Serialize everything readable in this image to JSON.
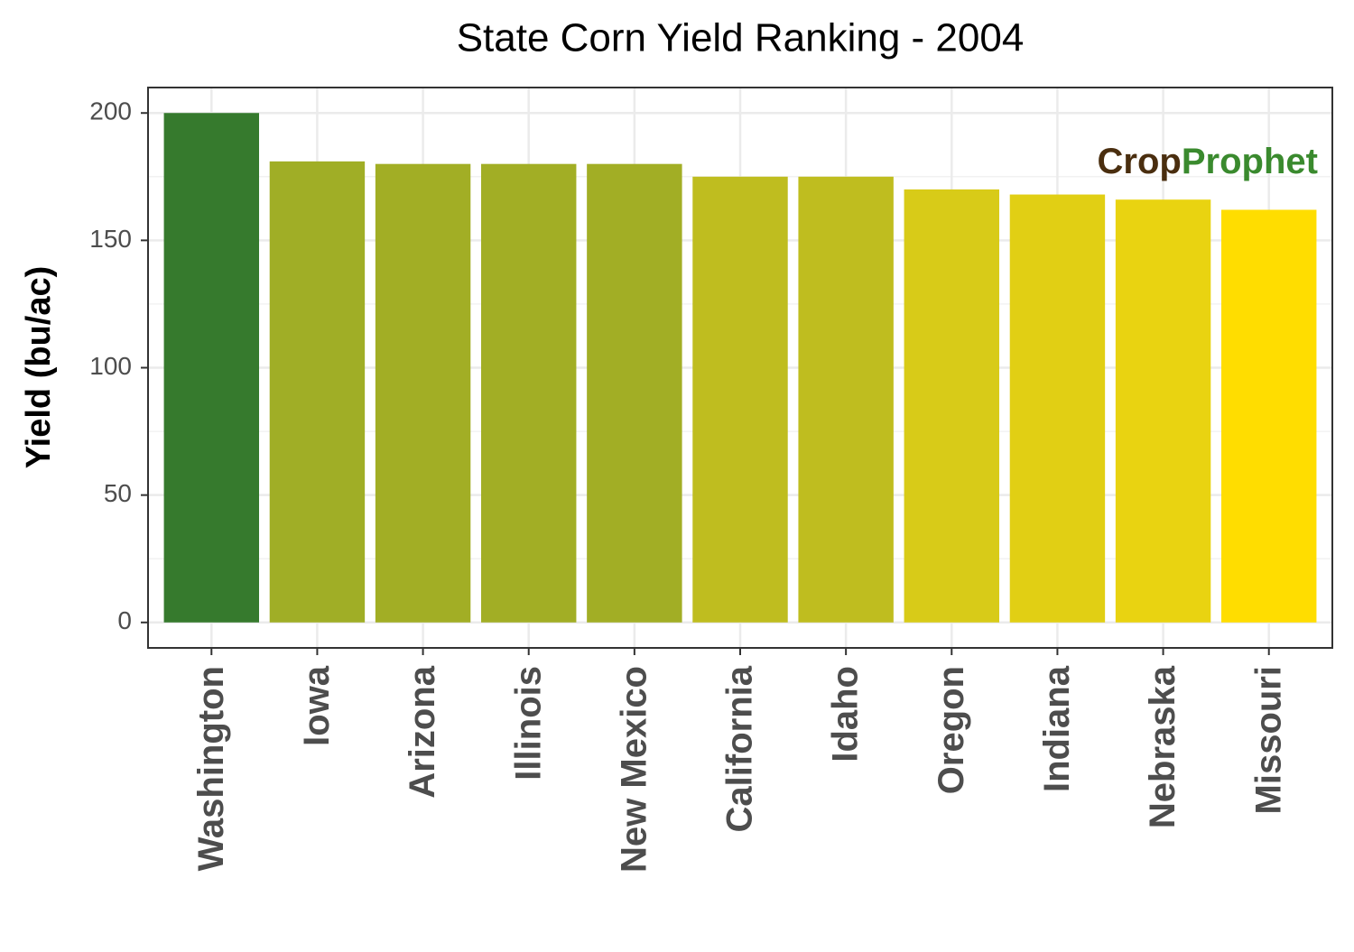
{
  "chart_data": {
    "type": "bar",
    "title": "State Corn Yield Ranking - 2004",
    "y_label": "Yield (bu/ac)",
    "categories": [
      "Washington",
      "Iowa",
      "Arizona",
      "Illinois",
      "New Mexico",
      "California",
      "Idaho",
      "Oregon",
      "Indiana",
      "Nebraska",
      "Missouri"
    ],
    "values": [
      200,
      181,
      180,
      180,
      180,
      175,
      175,
      170,
      168,
      166,
      162
    ],
    "colors": [
      "#367a2d",
      "#a0ae26",
      "#a2ae25",
      "#a2ae25",
      "#a2ae25",
      "#bfbd1f",
      "#bfbd1f",
      "#d8cb18",
      "#e1cf14",
      "#e9d311",
      "#ffdd00"
    ],
    "ylim": [
      -10,
      210
    ],
    "yticks": [
      0,
      50,
      100,
      150,
      200
    ],
    "grid": true,
    "logo": [
      "Crop",
      "Prophet"
    ]
  }
}
